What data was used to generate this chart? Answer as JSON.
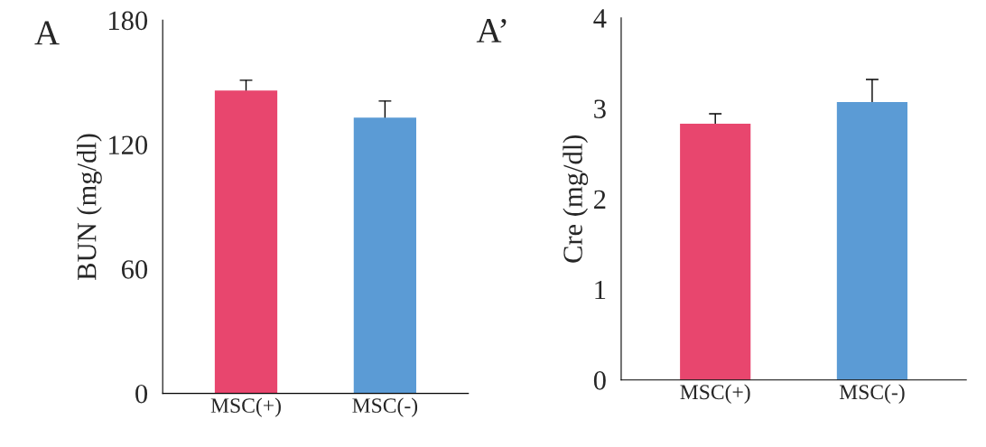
{
  "chart_data": [
    {
      "type": "bar",
      "title": "A",
      "ylabel": "BUN (mg/dl)",
      "categories": [
        "MSC(+)",
        "MSC(-)"
      ],
      "values": [
        146,
        133
      ],
      "errors": [
        5,
        8
      ],
      "colors": [
        "#e8466e",
        "#5b9bd5"
      ],
      "ylim": [
        0,
        180
      ],
      "yticks": [
        0,
        60,
        120,
        180
      ],
      "grid": false
    },
    {
      "type": "bar",
      "title": "A’",
      "ylabel": "Cre (mg/dl)",
      "categories": [
        "MSC(+)",
        "MSC(-)"
      ],
      "values": [
        2.83,
        3.07
      ],
      "errors": [
        0.11,
        0.25
      ],
      "colors": [
        "#e8466e",
        "#5b9bd5"
      ],
      "ylim": [
        0,
        4
      ],
      "yticks": [
        0,
        1,
        2,
        3,
        4
      ],
      "grid": false
    }
  ]
}
